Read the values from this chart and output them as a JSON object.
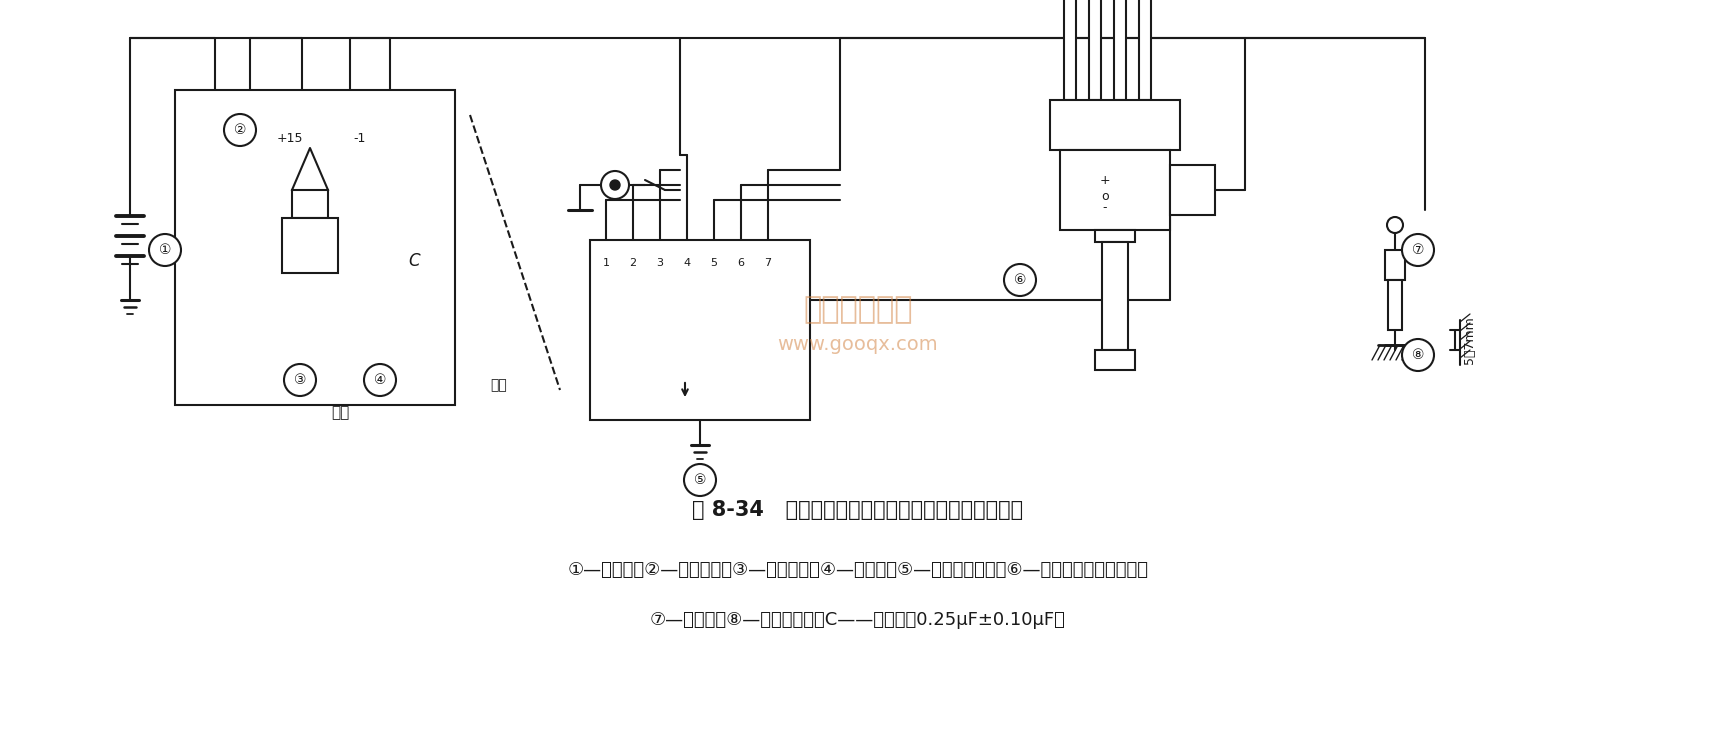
{
  "title": "图 8-34   诊断点火系统电源及点火线圈跳火能力方法",
  "caption_line1": "①—蓄电池；②—点火开关；③—点火线圈；④—跨接线；⑤—电子控制组件；⑥—内装传感器的分电器；",
  "caption_line2": "⑦—火花塞；⑧—发动机缸体；C——次电容（0.25μF±0.10μF）",
  "bg_color": "#ffffff",
  "line_color": "#1a1a1a",
  "watermark_color": "#D4884A",
  "watermark_text1": "精通维修下载",
  "watermark_text2": "www.gooqx.com",
  "title_fontsize": 15,
  "caption_fontsize": 13,
  "fig_width": 17.16,
  "fig_height": 7.34,
  "dpi": 100
}
